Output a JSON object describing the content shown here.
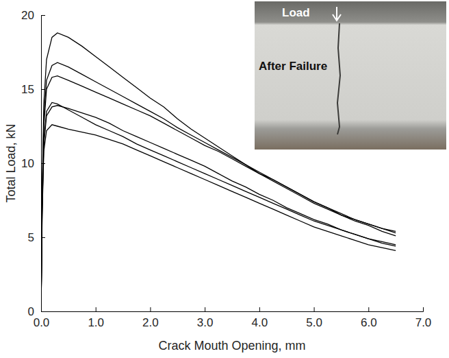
{
  "chart_data": {
    "type": "line",
    "x_label": "Crack Mouth Opening, mm",
    "y_label": "Total Load, kN",
    "annotations": [
      "Load",
      "After Failure"
    ],
    "x": [
      0,
      0.02,
      0.05,
      0.1,
      0.2,
      0.3,
      0.5,
      0.75,
      1.0,
      1.25,
      1.5,
      1.75,
      2.0,
      2.25,
      2.5,
      2.75,
      3.0,
      3.25,
      3.5,
      3.75,
      4.0,
      4.25,
      4.5,
      4.75,
      5.0,
      5.25,
      5.5,
      5.75,
      6.0,
      6.25,
      6.5
    ],
    "series": [
      {
        "color": "#000000",
        "values": [
          0,
          8,
          14,
          17,
          18.5,
          18.8,
          18.5,
          17.9,
          17.2,
          16.5,
          15.8,
          15.1,
          14.4,
          13.8,
          13.0,
          12.3,
          11.7,
          11.1,
          10.5,
          9.9,
          9.3,
          8.8,
          8.3,
          7.8,
          7.3,
          6.9,
          6.5,
          6.2,
          5.9,
          5.6,
          5.4
        ]
      },
      {
        "color": "#000000",
        "values": [
          0,
          7.5,
          13,
          15.6,
          16.6,
          16.8,
          16.5,
          16.0,
          15.5,
          15.0,
          14.5,
          14.0,
          13.5,
          13.0,
          12.4,
          11.9,
          11.4,
          10.9,
          10.4,
          9.9,
          9.4,
          8.9,
          8.4,
          7.9,
          7.4,
          7.0,
          6.6,
          6.2,
          5.9,
          5.6,
          5.3
        ]
      },
      {
        "color": "#000000",
        "values": [
          0,
          7.3,
          12.5,
          15.0,
          15.8,
          15.9,
          15.6,
          15.2,
          14.8,
          14.4,
          14.0,
          13.6,
          13.2,
          12.7,
          12.2,
          11.7,
          11.2,
          10.8,
          10.3,
          9.8,
          9.3,
          8.9,
          8.4,
          7.9,
          7.4,
          7.0,
          6.5,
          6.1,
          5.8,
          5.4,
          5.1
        ]
      },
      {
        "color": "#000000",
        "values": [
          0,
          7,
          11.5,
          13.5,
          14.1,
          14.0,
          13.6,
          13.1,
          12.6,
          12.2,
          11.8,
          11.3,
          10.9,
          10.5,
          10.1,
          9.7,
          9.3,
          8.9,
          8.5,
          8.1,
          7.7,
          7.3,
          6.9,
          6.5,
          6.1,
          5.8,
          5.5,
          5.2,
          4.9,
          4.7,
          4.5
        ]
      },
      {
        "color": "#000000",
        "values": [
          0,
          6.8,
          11.3,
          13.2,
          13.8,
          13.9,
          13.7,
          13.4,
          13.1,
          12.7,
          12.2,
          11.8,
          11.4,
          11.0,
          10.6,
          10.2,
          9.8,
          9.3,
          8.8,
          8.4,
          7.9,
          7.5,
          7.0,
          6.6,
          6.2,
          5.9,
          5.5,
          5.2,
          4.9,
          4.6,
          4.4
        ]
      },
      {
        "color": "#000000",
        "values": [
          0,
          6.5,
          10.8,
          12.2,
          12.6,
          12.5,
          12.3,
          12.1,
          11.9,
          11.6,
          11.3,
          10.9,
          10.5,
          10.1,
          9.7,
          9.3,
          8.9,
          8.5,
          8.1,
          7.7,
          7.3,
          6.9,
          6.5,
          6.1,
          5.7,
          5.4,
          5.1,
          4.8,
          4.5,
          4.3,
          4.1
        ]
      }
    ],
    "xlim": [
      0,
      7
    ],
    "xticks": [
      {
        "value": 0,
        "label": "0.0"
      },
      {
        "value": 1,
        "label": "1.0"
      },
      {
        "value": 2,
        "label": "2.0"
      },
      {
        "value": 3,
        "label": "3.0"
      },
      {
        "value": 4,
        "label": "4.0"
      },
      {
        "value": 5,
        "label": "5.0"
      },
      {
        "value": 6,
        "label": "6.0"
      },
      {
        "value": 7,
        "label": "7.0"
      }
    ],
    "ylim": [
      0,
      20
    ],
    "yticks": [
      0,
      5,
      10,
      15,
      20
    ],
    "grid": false
  }
}
